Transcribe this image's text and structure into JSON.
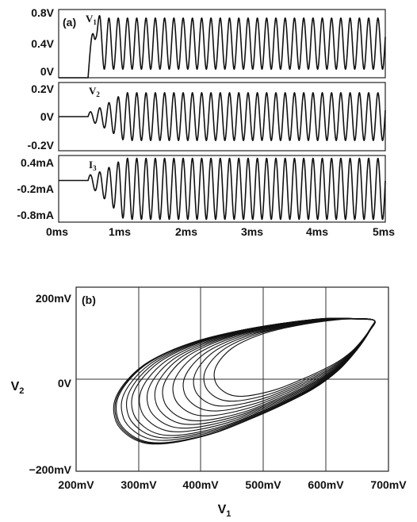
{
  "chart_data": [
    {
      "panel": "(a)",
      "type": "line",
      "xlabel": "",
      "x_ticks": [
        "0ms",
        "1ms",
        "2ms",
        "3ms",
        "4ms",
        "5ms"
      ],
      "xlim": [
        0,
        5
      ],
      "x_unit": "ms",
      "subplots": [
        {
          "label": "V1",
          "label_main": "V",
          "label_sub": "1",
          "y_unit": "V",
          "y_ticks": [
            "0.8V",
            "0.4V",
            "0V"
          ],
          "y_tick_values": [
            0.8,
            0.4,
            0
          ],
          "ylim": [
            0,
            0.8
          ],
          "onset_ms": 0.45,
          "settle_ms": 0.65,
          "final_mean": 0.4,
          "steady_amplitude": 0.3,
          "period_ms": 0.142,
          "initial_value": 0,
          "initial_value_end_ms": 0.4
        },
        {
          "label": "V2",
          "label_main": "V",
          "label_sub": "2",
          "y_unit": "V",
          "y_ticks": [
            "0.2V",
            "0V",
            "-0.2V"
          ],
          "y_tick_values": [
            0.2,
            0,
            -0.2
          ],
          "ylim": [
            -0.2,
            0.2
          ],
          "onset_ms": 0.45,
          "settle_ms": 1.0,
          "final_mean": 0,
          "steady_amplitude": 0.14,
          "period_ms": 0.142
        },
        {
          "label": "I3",
          "label_main": "I",
          "label_sub": "3",
          "y_unit": "mA",
          "y_ticks": [
            "0.4mA",
            "-0.2mA",
            "-0.8mA"
          ],
          "y_tick_values": [
            0.4,
            -0.2,
            -0.8
          ],
          "ylim": [
            -0.8,
            0.4
          ],
          "initial_value": -0.05,
          "onset_ms": 0.45,
          "settle_ms": 1.0,
          "final_mean": -0.2,
          "steady_amplitude": 0.55,
          "period_ms": 0.142
        }
      ]
    },
    {
      "panel": "(b)",
      "type": "line",
      "title": "",
      "xlabel": "V",
      "xlabel_sub": "1",
      "ylabel": "V",
      "ylabel_sub": "2",
      "xlim": [
        200,
        700
      ],
      "ylim": [
        -200,
        200
      ],
      "x_ticks": [
        "200mV",
        "300mV",
        "400mV",
        "500mV",
        "600mV",
        "700mV"
      ],
      "x_tick_values": [
        200,
        300,
        400,
        500,
        600,
        700
      ],
      "y_ticks": [
        "200mV",
        "0V",
        "−200mV"
      ],
      "y_tick_values": [
        200,
        0,
        -200
      ],
      "grid": true,
      "limit_cycle": {
        "points": [
          [
            677,
            128
          ],
          [
            640,
            132
          ],
          [
            600,
            132
          ],
          [
            550,
            125
          ],
          [
            500,
            115
          ],
          [
            450,
            102
          ],
          [
            400,
            85
          ],
          [
            350,
            60
          ],
          [
            310,
            30
          ],
          [
            280,
            -10
          ],
          [
            265,
            -50
          ],
          [
            268,
            -90
          ],
          [
            285,
            -118
          ],
          [
            310,
            -135
          ],
          [
            340,
            -138
          ],
          [
            380,
            -130
          ],
          [
            430,
            -112
          ],
          [
            480,
            -85
          ],
          [
            530,
            -55
          ],
          [
            580,
            -20
          ],
          [
            620,
            20
          ],
          [
            650,
            65
          ],
          [
            670,
            105
          ],
          [
            677,
            128
          ]
        ],
        "transient_scales": [
          0.62,
          0.66,
          0.7,
          0.74,
          0.78,
          0.82,
          0.85,
          0.88,
          0.91,
          0.94,
          0.96,
          0.98
        ],
        "scale_anchor": [
          677,
          128
        ]
      }
    }
  ]
}
